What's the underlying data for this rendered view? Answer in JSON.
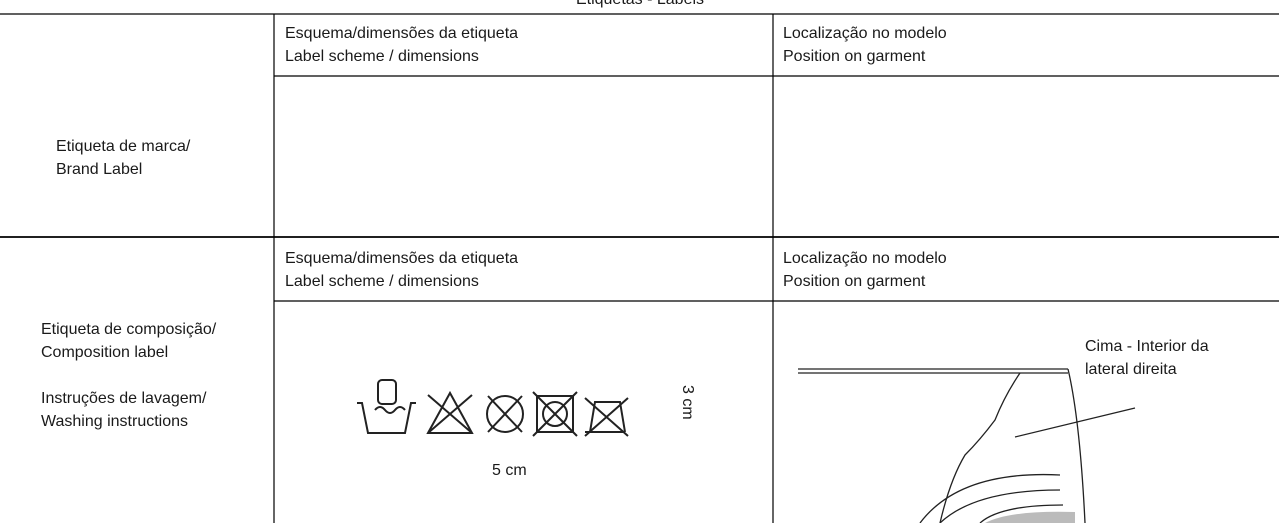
{
  "header": {
    "title": "Etiquetas - Labels"
  },
  "table": {
    "rows": [
      {
        "label": [
          "Etiqueta de marca/",
          "Brand Label"
        ],
        "scheme_header": [
          "Esquema/dimensões da etiqueta",
          "Label scheme / dimensions"
        ],
        "position_header": [
          "Localização no modelo",
          "Position on garment"
        ]
      },
      {
        "label": [
          "Etiqueta de composição/",
          "Composition label"
        ],
        "label_extra": [
          "Instruções de lavagem/",
          "Washing instructions"
        ],
        "scheme_header": [
          "Esquema/dimensões da etiqueta",
          "Label scheme / dimensions"
        ],
        "position_header": [
          "Localização no modelo",
          "Position on garment"
        ],
        "scheme": {
          "height": "3 cm",
          "width": "5 cm"
        },
        "position": {
          "annotation": [
            "Cima - Interior da",
            "lateral direita"
          ]
        }
      }
    ]
  }
}
